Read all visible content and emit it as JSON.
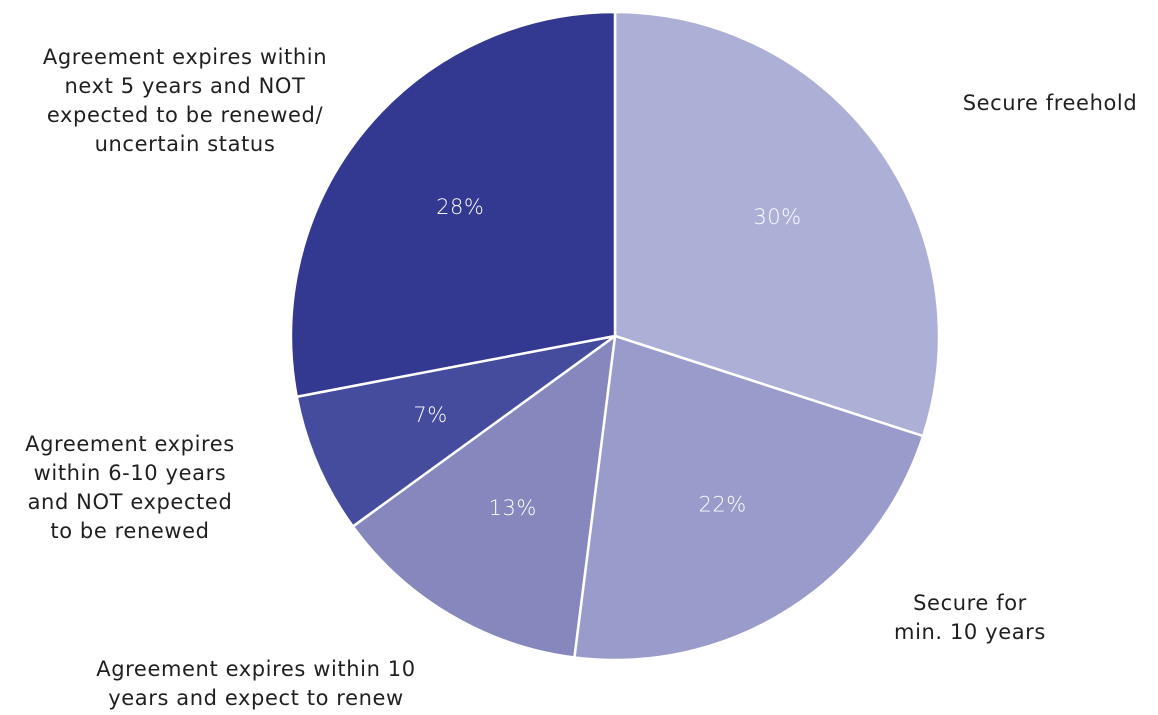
{
  "chart_data": {
    "type": "pie",
    "title": "",
    "slices": [
      {
        "category": "Secure freehold",
        "category_lines": [
          "Secure freehold"
        ],
        "value": 30,
        "label": "30%",
        "color": "#adb0d6"
      },
      {
        "category": "Secure for min. 10 years",
        "category_lines": [
          "Secure for",
          "min. 10 years"
        ],
        "value": 22,
        "label": "22%",
        "color": "#999bcb"
      },
      {
        "category": "Agreement expires within 10 years and expect to renew",
        "category_lines": [
          "Agreement expires within 10",
          "years and expect to renew"
        ],
        "value": 13,
        "label": "13%",
        "color": "#8587bd"
      },
      {
        "category": "Agreement expires within 6-10 years and NOT expected to be renewed",
        "category_lines": [
          "Agreement expires",
          "within 6-10 years",
          "and NOT expected",
          "to be renewed"
        ],
        "value": 7,
        "label": "7%",
        "color": "#454b9d"
      },
      {
        "category": "Agreement expires within next 5 years and NOT expected to be renewed/ uncertain status",
        "category_lines": [
          "Agreement expires within",
          "next 5 years and NOT",
          "expected to be renewed/",
          "uncertain status"
        ],
        "value": 28,
        "label": "28%",
        "color": "#333891"
      }
    ],
    "start_direction": "12 o'clock",
    "order": "clockwise",
    "legend": "none",
    "grid": false
  }
}
